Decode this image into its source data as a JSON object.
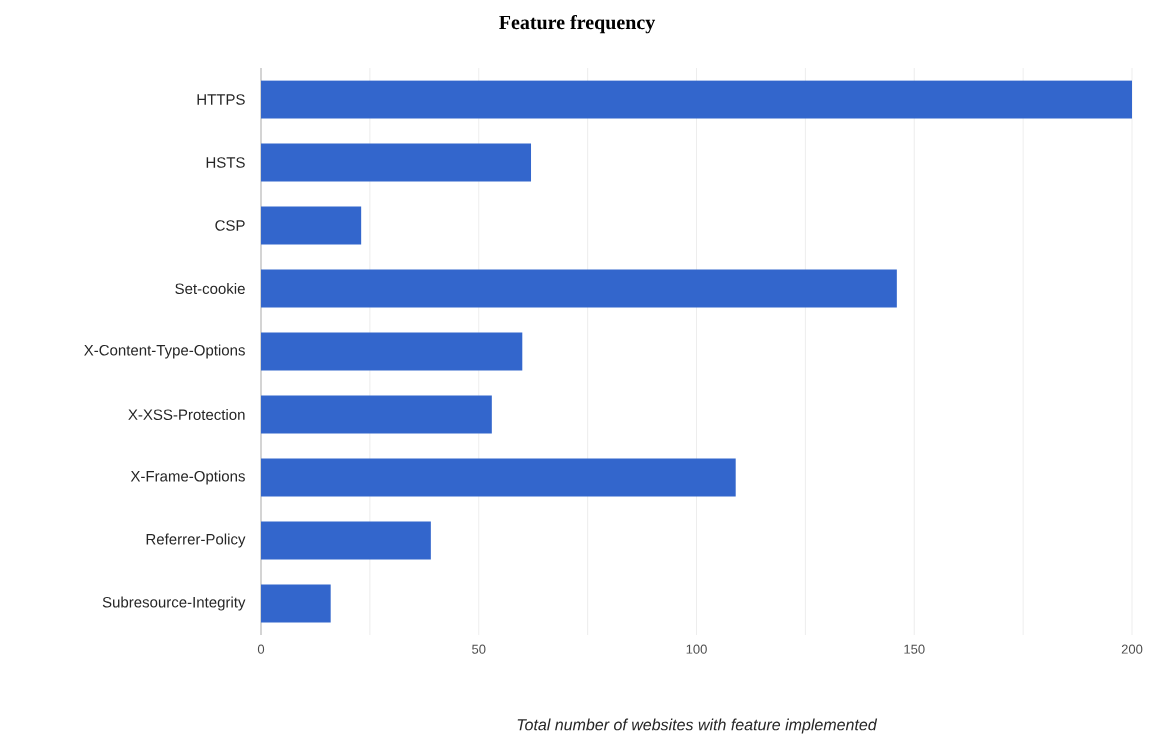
{
  "chart_data": {
    "type": "bar",
    "orientation": "horizontal",
    "title": "Feature frequency",
    "xlabel": "Total number of websites with feature implemented",
    "categories": [
      "HTTPS",
      "HSTS",
      "CSP",
      "Set-cookie",
      "X-Content-Type-Options",
      "X-XSS-Protection",
      "X-Frame-Options",
      "Referrer-Policy",
      "Subresource-Integrity"
    ],
    "values": [
      200,
      62,
      23,
      146,
      60,
      53,
      109,
      39,
      16
    ],
    "color": "#3366cc",
    "xlim": [
      0,
      200
    ],
    "xticks": [
      0,
      {
        "value": 25,
        "label": null
      },
      50,
      {
        "value": 75,
        "label": null
      },
      100,
      {
        "value": 125,
        "label": null
      },
      150,
      {
        "value": 175,
        "label": null
      },
      200
    ],
    "grid": "x"
  }
}
